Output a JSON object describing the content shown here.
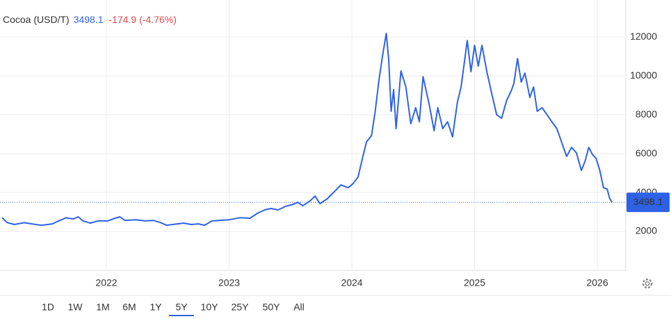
{
  "chart_data": {
    "type": "line",
    "title": "Cocoa (USD/T)",
    "last_price": 3498.1,
    "change": -174.9,
    "change_percent": "(-4.76%)",
    "color": "#2e62e6",
    "grid": true,
    "x": [
      2021.15,
      2021.19,
      2021.25,
      2021.33,
      2021.39,
      2021.47,
      2021.56,
      2021.61,
      2021.67,
      2021.73,
      2021.77,
      2021.81,
      2021.87,
      2021.93,
      2022.01,
      2022.07,
      2022.11,
      2022.15,
      2022.24,
      2022.32,
      2022.38,
      2022.44,
      2022.49,
      2022.58,
      2022.63,
      2022.69,
      2022.75,
      2022.8,
      2022.86,
      2022.92,
      2023.0,
      2023.09,
      2023.17,
      2023.23,
      2023.29,
      2023.34,
      2023.4,
      2023.46,
      2023.52,
      2023.56,
      2023.6,
      2023.66,
      2023.7,
      2023.74,
      2023.8,
      2023.85,
      2023.91,
      2023.97,
      2024.01,
      2024.05,
      2024.09,
      2024.12,
      2024.16,
      2024.19,
      2024.22,
      2024.25,
      2024.28,
      2024.3,
      2024.32,
      2024.34,
      2024.36,
      2024.4,
      2024.44,
      2024.48,
      2024.52,
      2024.55,
      2024.58,
      2024.63,
      2024.67,
      2024.7,
      2024.74,
      2024.78,
      2024.82,
      2024.86,
      2024.89,
      2024.94,
      2024.97,
      2025.0,
      2025.03,
      2025.06,
      2025.1,
      2025.14,
      2025.18,
      2025.22,
      2025.26,
      2025.3,
      2025.32,
      2025.35,
      2025.38,
      2025.41,
      2025.45,
      2025.48,
      2025.51,
      2025.55,
      2025.59,
      2025.63,
      2025.67,
      2025.71,
      2025.75,
      2025.79,
      2025.83,
      2025.87,
      2025.9,
      2025.93,
      2025.96,
      2025.99,
      2026.02,
      2026.05,
      2026.08,
      2026.1,
      2026.12
    ],
    "values": [
      2710,
      2460,
      2360,
      2450,
      2390,
      2320,
      2390,
      2540,
      2700,
      2640,
      2750,
      2540,
      2430,
      2540,
      2540,
      2680,
      2750,
      2570,
      2600,
      2540,
      2570,
      2460,
      2320,
      2390,
      2430,
      2360,
      2390,
      2320,
      2540,
      2570,
      2600,
      2710,
      2680,
      2930,
      3110,
      3180,
      3110,
      3290,
      3390,
      3500,
      3320,
      3570,
      3820,
      3430,
      3680,
      4000,
      4390,
      4250,
      4460,
      4790,
      5860,
      6610,
      6930,
      8180,
      9750,
      11040,
      12180,
      10860,
      8180,
      9290,
      7290,
      10250,
      9430,
      7540,
      8360,
      7640,
      9960,
      8540,
      7180,
      8360,
      7290,
      7640,
      6860,
      8640,
      9430,
      11820,
      10210,
      11570,
      10500,
      11570,
      10210,
      9070,
      8000,
      7820,
      8710,
      9250,
      9610,
      10890,
      9680,
      10140,
      8890,
      9430,
      8180,
      8360,
      8000,
      7640,
      7290,
      6570,
      5860,
      6320,
      6040,
      5140,
      5610,
      6320,
      5960,
      5750,
      5140,
      4250,
      4180,
      3710,
      3498.1
    ],
    "xlim": [
      2021.133,
      2026.232
    ],
    "xticks": [
      2022,
      2023,
      2024,
      2025,
      2026
    ],
    "ylim": [
      0,
      13900
    ],
    "yticks": [
      2000,
      4000,
      6000,
      8000,
      10000,
      12000
    ],
    "ranges": [
      "1D",
      "1W",
      "1M",
      "6M",
      "1Y",
      "5Y",
      "10Y",
      "25Y",
      "50Y",
      "All"
    ],
    "selected_range": 5
  }
}
